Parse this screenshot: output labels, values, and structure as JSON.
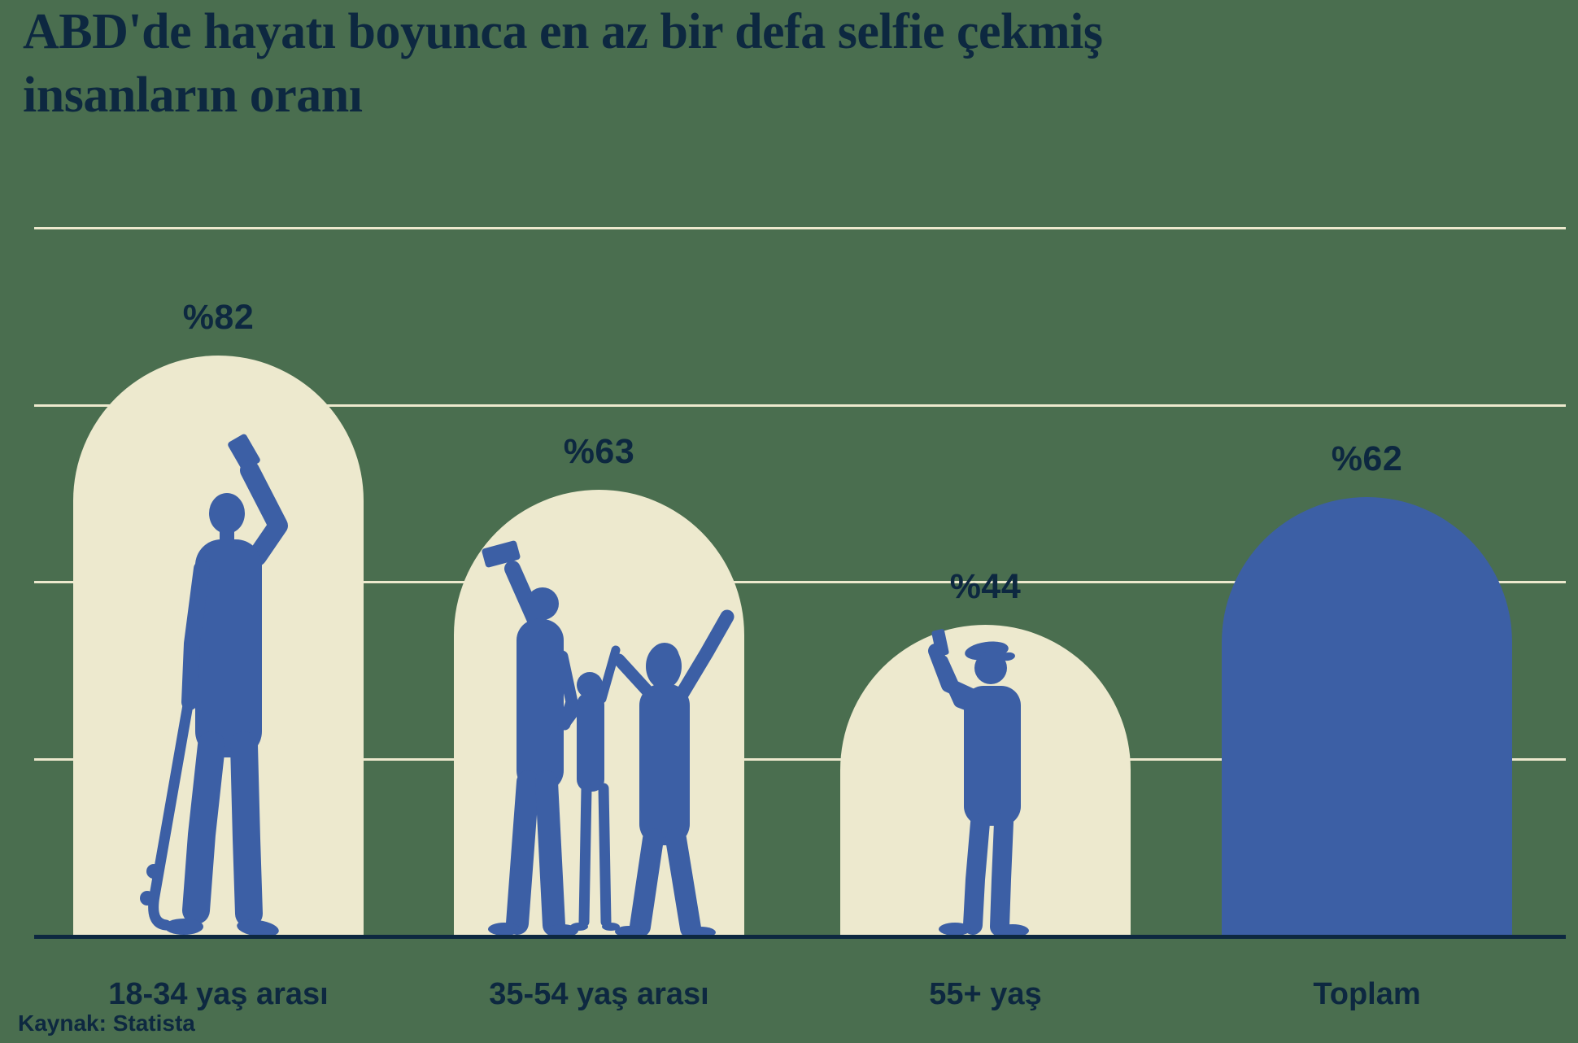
{
  "title": "ABD'de hayatı boyunca en az bir defa selfie çekmiş\ninsanların oranı",
  "source": "Kaynak: Statista",
  "colors": {
    "background": "#4a6e4f",
    "cream": "#ede9ce",
    "blue": "#3c5fa5",
    "navy": "#0d2840"
  },
  "chart_data": {
    "type": "bar",
    "title": "ABD'de hayatı boyunca en az bir defa selfie çekmiş insanların oranı",
    "categories": [
      "18-34 yaş arası",
      "35-54 yaş arası",
      "55+ yaş",
      "Toplam"
    ],
    "values": [
      82,
      63,
      44,
      62
    ],
    "value_labels": [
      "%82",
      "%63",
      "%44",
      "%62"
    ],
    "unit": "percent",
    "ylim": [
      0,
      100
    ],
    "gridline_values": [
      25,
      50,
      75,
      100
    ],
    "grid": "on",
    "legend": "none",
    "bar_shape": "arch-top",
    "bar_styles": [
      "cream",
      "cream",
      "cream",
      "blue"
    ],
    "silhouettes": [
      "young-man-taking-selfie-holding-skateboard",
      "family-of-three-taking-selfie",
      "older-man-with-flat-cap-taking-selfie",
      "none"
    ],
    "source": "Kaynak: Statista"
  }
}
